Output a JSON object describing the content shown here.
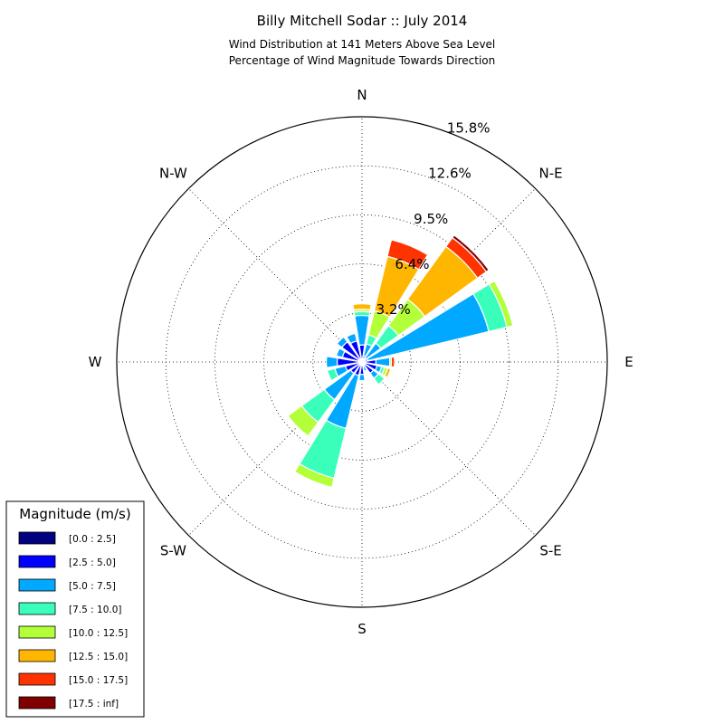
{
  "chart_data": {
    "type": "windrose",
    "title": "Billy Mitchell Sodar :: July 2014",
    "subtitle_lines": [
      "Wind Distribution at 141 Meters Above Sea Level",
      "Percentage of Wind Magnitude Towards Direction"
    ],
    "direction_labels": [
      {
        "name": "N",
        "angle": 0
      },
      {
        "name": "N-E",
        "angle": 45
      },
      {
        "name": "E",
        "angle": 90
      },
      {
        "name": "S-E",
        "angle": 135
      },
      {
        "name": "S",
        "angle": 180
      },
      {
        "name": "S-W",
        "angle": 225
      },
      {
        "name": "W",
        "angle": 270
      },
      {
        "name": "N-W",
        "angle": 315
      }
    ],
    "radial_ticks": [
      {
        "value": 3.16,
        "label": "3.2%"
      },
      {
        "value": 6.32,
        "label": "6.4%"
      },
      {
        "value": 9.48,
        "label": "9.5%"
      },
      {
        "value": 12.64,
        "label": "12.6%"
      },
      {
        "value": 15.8,
        "label": "15.8%"
      }
    ],
    "rmax": 15.8,
    "grid": true,
    "legend": {
      "title": "Magnitude (m/s)",
      "placement": "bottom-left",
      "items": [
        {
          "label": "[0.0 : 2.5]",
          "color": "#000080"
        },
        {
          "label": "[2.5 : 5.0]",
          "color": "#0000ff"
        },
        {
          "label": "[5.0 : 7.5]",
          "color": "#00a8ff"
        },
        {
          "label": "[7.5 : 10.0]",
          "color": "#3affbb"
        },
        {
          "label": "[10.0 : 12.5]",
          "color": "#b2ff3a"
        },
        {
          "label": "[12.5 : 15.0]",
          "color": "#ffb600"
        },
        {
          "label": "[15.0 : 17.5]",
          "color": "#ff3300"
        },
        {
          "label": "[17.5 : inf]",
          "color": "#800000"
        }
      ]
    },
    "sector_width_deg": 22.5,
    "sectors": [
      {
        "direction": 0,
        "values": [
          0.0,
          1.1,
          1.9,
          0.25,
          0.15,
          0.35,
          0.0,
          0.0
        ]
      },
      {
        "direction": 22.5,
        "values": [
          0.0,
          0.4,
          0.8,
          0.6,
          1.6,
          3.6,
          1.1,
          0.0
        ]
      },
      {
        "direction": 45,
        "values": [
          0.0,
          0.3,
          1.2,
          1.4,
          2.1,
          4.2,
          0.7,
          0.2
        ]
      },
      {
        "direction": 67.5,
        "values": [
          0.0,
          0.4,
          8.0,
          1.2,
          0.4,
          0.0,
          0.0,
          0.0
        ]
      },
      {
        "direction": 90,
        "values": [
          0.0,
          0.9,
          0.9,
          0.0,
          0.1,
          0.0,
          0.2,
          0.0
        ]
      },
      {
        "direction": 112.5,
        "values": [
          0.0,
          1.0,
          0.3,
          0.2,
          0.2,
          0.2,
          0.0,
          0.0
        ]
      },
      {
        "direction": 135,
        "values": [
          0.0,
          0.9,
          0.4,
          0.5,
          0.0,
          0.0,
          0.0,
          0.0
        ]
      },
      {
        "direction": 157.5,
        "values": [
          0.0,
          0.3,
          0.3,
          0.0,
          0.0,
          0.0,
          0.0,
          0.0
        ]
      },
      {
        "direction": 180,
        "values": [
          0.0,
          0.8,
          0.4,
          0.0,
          0.0,
          0.0,
          0.0,
          0.0
        ]
      },
      {
        "direction": 202.5,
        "values": [
          0.0,
          0.9,
          3.5,
          3.3,
          0.6,
          0.0,
          0.0,
          0.0
        ]
      },
      {
        "direction": 225,
        "values": [
          0.0,
          0.9,
          2.1,
          1.8,
          1.1,
          0.0,
          0.0,
          0.0
        ]
      },
      {
        "direction": 247.5,
        "values": [
          0.0,
          1.1,
          0.7,
          0.5,
          0.0,
          0.0,
          0.0,
          0.0
        ]
      },
      {
        "direction": 270,
        "values": [
          0.0,
          1.6,
          0.7,
          0.0,
          0.0,
          0.0,
          0.0,
          0.0
        ]
      },
      {
        "direction": 292.5,
        "values": [
          0.0,
          1.3,
          0.4,
          0.0,
          0.0,
          0.0,
          0.0,
          0.0
        ]
      },
      {
        "direction": 315,
        "values": [
          0.0,
          1.6,
          0.4,
          0.0,
          0.0,
          0.0,
          0.0,
          0.0
        ]
      },
      {
        "direction": 337.5,
        "values": [
          0.0,
          1.4,
          0.5,
          0.0,
          0.0,
          0.0,
          0.0,
          0.0
        ]
      }
    ]
  }
}
